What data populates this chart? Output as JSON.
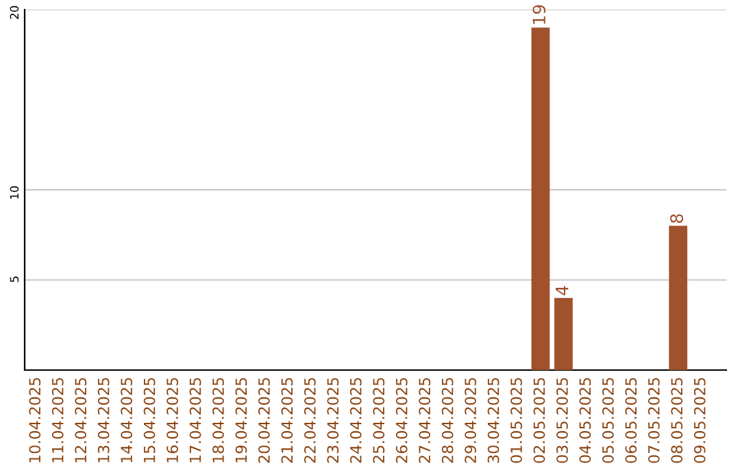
{
  "chart_data": {
    "type": "bar",
    "categories": [
      "10.04.2025",
      "11.04.2025",
      "12.04.2025",
      "13.04.2025",
      "14.04.2025",
      "15.04.2025",
      "16.04.2025",
      "17.04.2025",
      "18.04.2025",
      "19.04.2025",
      "20.04.2025",
      "21.04.2025",
      "22.04.2025",
      "23.04.2025",
      "24.04.2025",
      "25.04.2025",
      "26.04.2025",
      "27.04.2025",
      "28.04.2025",
      "29.04.2025",
      "30.04.2025",
      "01.05.2025",
      "02.05.2025",
      "03.05.2025",
      "04.05.2025",
      "05.05.2025",
      "06.05.2025",
      "07.05.2025",
      "08.05.2025",
      "09.05.2025"
    ],
    "values": [
      0,
      0,
      0,
      0,
      0,
      0,
      0,
      0,
      0,
      0,
      0,
      0,
      0,
      0,
      0,
      0,
      0,
      0,
      0,
      0,
      0,
      0,
      19,
      4,
      0,
      0,
      0,
      0,
      8,
      0
    ],
    "value_labels": [
      null,
      null,
      null,
      null,
      null,
      null,
      null,
      null,
      null,
      null,
      null,
      null,
      null,
      null,
      null,
      null,
      null,
      null,
      null,
      null,
      null,
      null,
      "19",
      "4",
      null,
      null,
      null,
      null,
      "8",
      null
    ],
    "color": "#a0522d",
    "ylim": [
      0,
      20
    ],
    "yticks": [
      5,
      10,
      20
    ],
    "grid": "y"
  }
}
